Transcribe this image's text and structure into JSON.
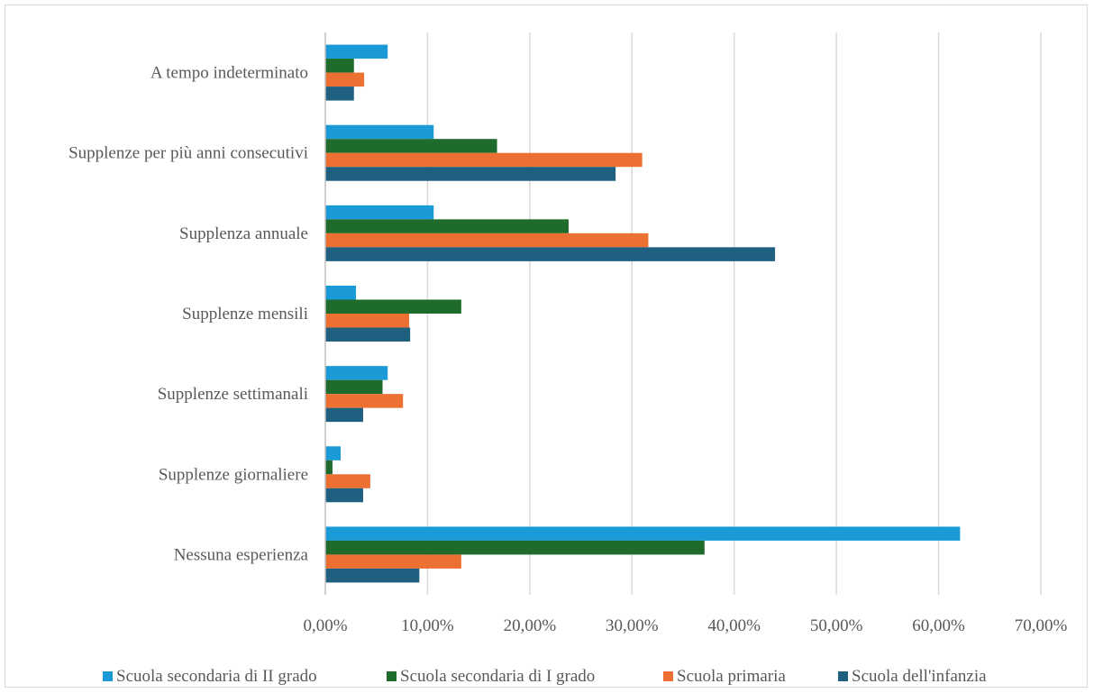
{
  "chart_data": {
    "type": "bar",
    "orientation": "horizontal",
    "categories": [
      "A tempo indeterminato",
      "Supplenze per più anni consecutivi",
      "Supplenza annuale",
      "Supplenze mensili",
      "Supplenze settimanali",
      "Supplenze giornaliere",
      "Nessuna esperienza"
    ],
    "series": [
      {
        "name": "Scuola secondaria di II grado",
        "color": "#1a9bd7",
        "values": [
          6.1,
          10.6,
          10.6,
          3.0,
          6.1,
          1.5,
          62.1
        ]
      },
      {
        "name": "Scuola secondaria di I grado",
        "color": "#1f6b2b",
        "values": [
          2.8,
          16.8,
          23.8,
          13.3,
          5.6,
          0.7,
          37.1
        ]
      },
      {
        "name": "Scuola primaria",
        "color": "#ed7033",
        "values": [
          3.8,
          31.0,
          31.6,
          8.2,
          7.6,
          4.4,
          13.3
        ]
      },
      {
        "name": "Scuola dell'infanzia",
        "color": "#1f5f80",
        "values": [
          2.8,
          28.4,
          44.0,
          8.3,
          3.7,
          3.7,
          9.2
        ]
      }
    ],
    "xlim": [
      0,
      70
    ],
    "ticks": [
      "0,00%",
      "10,00%",
      "20,00%",
      "30,00%",
      "40,00%",
      "50,00%",
      "60,00%",
      "70,00%"
    ],
    "grid": true,
    "legend_position": "bottom"
  }
}
